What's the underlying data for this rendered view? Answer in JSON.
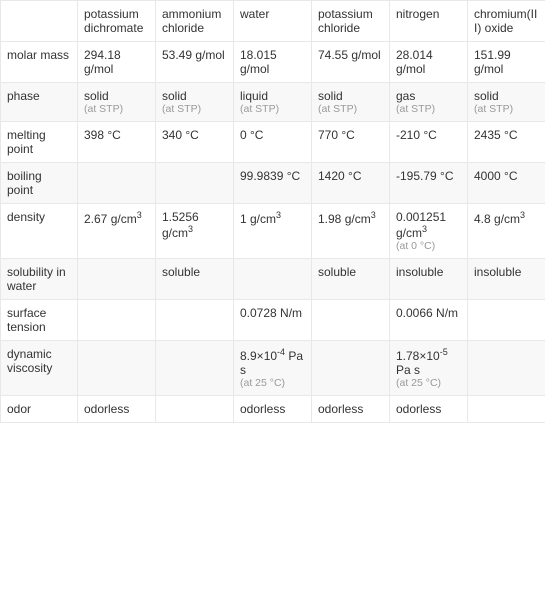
{
  "table": {
    "columns": [
      "",
      "potassium dichromate",
      "ammonium chloride",
      "water",
      "potassium chloride",
      "nitrogen",
      "chromium(III) oxide"
    ],
    "rows": [
      {
        "label": "molar mass",
        "cells": [
          {
            "main": "294.18 g/mol"
          },
          {
            "main": "53.49 g/mol"
          },
          {
            "main": "18.015 g/mol"
          },
          {
            "main": "74.55 g/mol"
          },
          {
            "main": "28.014 g/mol"
          },
          {
            "main": "151.99 g/mol"
          }
        ]
      },
      {
        "label": "phase",
        "cells": [
          {
            "main": "solid",
            "sub": "(at STP)"
          },
          {
            "main": "solid",
            "sub": "(at STP)"
          },
          {
            "main": "liquid",
            "sub": "(at STP)"
          },
          {
            "main": "solid",
            "sub": "(at STP)"
          },
          {
            "main": "gas",
            "sub": "(at STP)"
          },
          {
            "main": "solid",
            "sub": "(at STP)"
          }
        ]
      },
      {
        "label": "melting point",
        "cells": [
          {
            "main": "398 °C"
          },
          {
            "main": "340 °C"
          },
          {
            "main": "0 °C"
          },
          {
            "main": "770 °C"
          },
          {
            "main": "-210 °C"
          },
          {
            "main": "2435 °C"
          }
        ]
      },
      {
        "label": "boiling point",
        "cells": [
          {
            "main": ""
          },
          {
            "main": ""
          },
          {
            "main": "99.9839 °C"
          },
          {
            "main": "1420 °C"
          },
          {
            "main": "-195.79 °C"
          },
          {
            "main": "4000 °C"
          }
        ]
      },
      {
        "label": "density",
        "cells": [
          {
            "main": "2.67 g/cm",
            "sup": "3"
          },
          {
            "main": "1.5256 g/cm",
            "sup": "3"
          },
          {
            "main": "1 g/cm",
            "sup": "3"
          },
          {
            "main": "1.98 g/cm",
            "sup": "3"
          },
          {
            "main": "0.001251 g/cm",
            "sup": "3",
            "sub": "(at 0 °C)"
          },
          {
            "main": "4.8 g/cm",
            "sup": "3"
          }
        ]
      },
      {
        "label": "solubility in water",
        "cells": [
          {
            "main": ""
          },
          {
            "main": "soluble"
          },
          {
            "main": ""
          },
          {
            "main": "soluble"
          },
          {
            "main": "insoluble"
          },
          {
            "main": "insoluble"
          }
        ]
      },
      {
        "label": "surface tension",
        "cells": [
          {
            "main": ""
          },
          {
            "main": ""
          },
          {
            "main": "0.0728 N/m"
          },
          {
            "main": ""
          },
          {
            "main": "0.0066 N/m"
          },
          {
            "main": ""
          }
        ]
      },
      {
        "label": "dynamic viscosity",
        "cells": [
          {
            "main": ""
          },
          {
            "main": ""
          },
          {
            "main": "8.9×10",
            "sup": "-4",
            "post": " Pa s",
            "sub": "(at 25 °C)"
          },
          {
            "main": ""
          },
          {
            "main": "1.78×10",
            "sup": "-5",
            "post": " Pa s",
            "sub": "(at 25 °C)"
          },
          {
            "main": ""
          }
        ]
      },
      {
        "label": "odor",
        "cells": [
          {
            "main": "odorless"
          },
          {
            "main": ""
          },
          {
            "main": "odorless"
          },
          {
            "main": "odorless"
          },
          {
            "main": "odorless"
          },
          {
            "main": ""
          }
        ]
      }
    ]
  }
}
